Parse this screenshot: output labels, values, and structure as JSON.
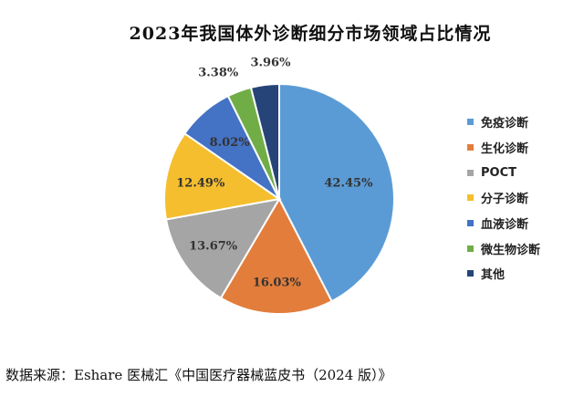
{
  "chart_data": {
    "type": "pie",
    "title": "2023年我国体外诊断细分市场领域占比情况",
    "categories": [
      "免疫诊断",
      "生化诊断",
      "POCT",
      "分子诊断",
      "血液诊断",
      "微生物诊断",
      "其他"
    ],
    "values": [
      42.45,
      16.03,
      13.67,
      12.49,
      8.02,
      3.38,
      3.96
    ],
    "labels": [
      "42.45%",
      "16.03%",
      "13.67%",
      "12.49%",
      "8.02%",
      "3.38%",
      "3.96%"
    ],
    "colors": [
      "#5b9bd5",
      "#e27d3b",
      "#a5a5a5",
      "#f5be2e",
      "#4472c4",
      "#70ad47",
      "#264478"
    ],
    "legend_position": "right"
  },
  "source_note": "数据来源：Eshare 医械汇《中国医疗器械蓝皮书（2024 版）》"
}
